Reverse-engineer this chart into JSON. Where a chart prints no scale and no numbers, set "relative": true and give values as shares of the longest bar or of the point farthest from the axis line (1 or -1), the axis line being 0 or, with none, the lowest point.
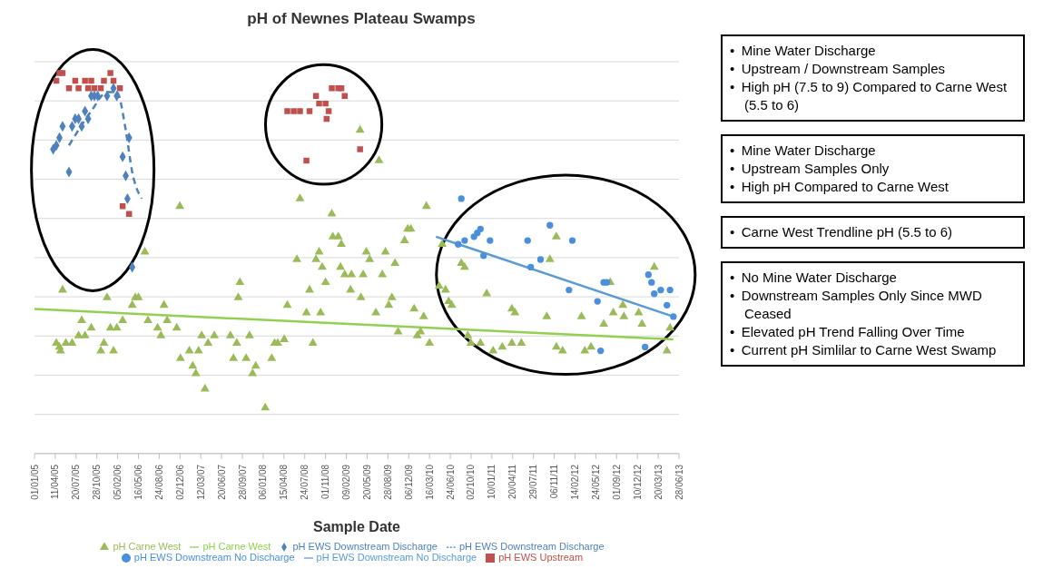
{
  "chart_data": {
    "type": "scatter",
    "title": "pH of Newnes Plateau Swamps",
    "xlabel": "Sample Date",
    "relative": true,
    "grid": "y",
    "legend": "bottom",
    "xlim": [
      "2005-01-01",
      "2013-06-28"
    ],
    "xticks": [
      {
        "value": "2005-01-01",
        "label": "01/01/05"
      },
      {
        "value": "2005-04-11",
        "label": "11/04/05"
      },
      {
        "value": "2005-07-20",
        "label": "20/07/05"
      },
      {
        "value": "2005-10-28",
        "label": "28/10/05"
      },
      {
        "value": "2006-02-05",
        "label": "05/02/06"
      },
      {
        "value": "2006-05-16",
        "label": "16/05/06"
      },
      {
        "value": "2006-08-24",
        "label": "24/08/06"
      },
      {
        "value": "2006-12-02",
        "label": "02/12/06"
      },
      {
        "value": "2007-03-12",
        "label": "12/03/07"
      },
      {
        "value": "2007-06-20",
        "label": "20/06/07"
      },
      {
        "value": "2007-09-28",
        "label": "28/09/07"
      },
      {
        "value": "2008-01-06",
        "label": "06/01/08"
      },
      {
        "value": "2008-04-15",
        "label": "15/04/08"
      },
      {
        "value": "2008-07-24",
        "label": "24/07/08"
      },
      {
        "value": "2008-11-01",
        "label": "01/11/08"
      },
      {
        "value": "2009-02-09",
        "label": "09/02/09"
      },
      {
        "value": "2009-05-20",
        "label": "20/05/09"
      },
      {
        "value": "2009-08-28",
        "label": "28/08/09"
      },
      {
        "value": "2009-12-06",
        "label": "06/12/09"
      },
      {
        "value": "2010-03-16",
        "label": "16/03/10"
      },
      {
        "value": "2010-06-24",
        "label": "24/06/10"
      },
      {
        "value": "2010-10-02",
        "label": "02/10/10"
      },
      {
        "value": "2011-01-10",
        "label": "10/01/11"
      },
      {
        "value": "2011-04-20",
        "label": "20/04/11"
      },
      {
        "value": "2011-07-29",
        "label": "29/07/11"
      },
      {
        "value": "2011-11-06",
        "label": "06/11/11"
      },
      {
        "value": "2012-02-14",
        "label": "14/02/12"
      },
      {
        "value": "2012-05-24",
        "label": "24/05/12"
      },
      {
        "value": "2012-09-01",
        "label": "01/09/12"
      },
      {
        "value": "2012-12-10",
        "label": "10/12/12"
      },
      {
        "value": "2013-03-20",
        "label": "20/03/13"
      },
      {
        "value": "2013-06-28",
        "label": "28/06/13"
      }
    ],
    "series": [
      {
        "name": "pH EWS Downstream Discharge",
        "marker": "diamond",
        "color": "#4f81bd",
        "x": [
          "2005-04-01",
          "2005-04-16",
          "2005-05-01",
          "2005-05-16",
          "2005-06-16",
          "2005-07-01",
          "2005-07-16",
          "2005-08-01",
          "2005-08-16",
          "2005-09-01",
          "2005-09-16",
          "2005-10-01",
          "2005-10-16",
          "2005-11-01",
          "2005-12-16",
          "2006-01-16",
          "2006-02-01",
          "2006-04-01",
          "2006-03-01",
          "2006-03-16",
          "2006-03-24",
          "2006-04-16"
        ],
        "values": [
          0.8,
          0.81,
          0.83,
          0.86,
          0.74,
          0.86,
          0.88,
          0.88,
          0.86,
          0.9,
          0.88,
          0.94,
          0.94,
          0.94,
          0.94,
          0.96,
          0.94,
          0.83,
          0.78,
          0.73,
          0.67,
          0.49
        ]
      },
      {
        "name": "pH EWS Upstream",
        "marker": "square",
        "color": "#c0504d",
        "x": [
          "2005-04-16",
          "2005-05-01",
          "2005-05-16",
          "2005-06-16",
          "2005-07-16",
          "2005-08-01",
          "2005-09-01",
          "2005-09-16",
          "2005-10-01",
          "2005-10-16",
          "2005-11-16",
          "2005-12-01",
          "2006-01-01",
          "2006-01-16",
          "2006-02-16",
          "2006-03-01",
          "2006-04-01",
          "2008-05-01",
          "2008-06-01",
          "2008-07-01",
          "2008-08-16",
          "2008-09-16",
          "2008-10-01",
          "2008-11-01",
          "2008-11-16",
          "2008-11-06",
          "2008-12-01",
          "2009-01-01",
          "2009-01-16",
          "2009-02-01",
          "2008-08-01",
          "2009-04-16"
        ],
        "values": [
          0.98,
          1.0,
          1.0,
          0.96,
          0.98,
          0.96,
          0.98,
          0.96,
          0.98,
          0.96,
          0.96,
          0.98,
          1.0,
          0.98,
          0.96,
          0.65,
          0.63,
          0.9,
          0.9,
          0.9,
          0.9,
          0.94,
          0.92,
          0.92,
          0.9,
          0.88,
          0.96,
          0.96,
          0.96,
          0.94,
          0.77,
          0.8
        ]
      },
      {
        "name": "pH Carne West",
        "marker": "triangle",
        "color": "#9bbb59",
        "x": [
          "2005-05-16",
          "2005-04-16",
          "2005-06-01",
          "2005-07-01",
          "2005-08-16",
          "2005-08-01",
          "2005-09-01",
          "2005-10-01",
          "2005-12-01",
          "2005-12-16",
          "2006-01-01",
          "2006-02-01",
          "2006-03-01",
          "2006-04-16",
          "2006-05-01",
          "2006-05-16",
          "2006-06-16",
          "2006-07-01",
          "2006-08-16",
          "2006-09-16",
          "2006-10-01",
          "2006-11-16",
          "2006-12-01",
          "2007-03-16",
          "2007-04-16",
          "2007-05-16",
          "2007-08-01",
          "2007-09-01",
          "2007-09-16",
          "2007-09-08",
          "2007-11-01",
          "2008-03-01",
          "2008-04-16",
          "2008-05-01",
          "2008-06-16",
          "2008-07-01",
          "2008-08-01",
          "2008-08-16",
          "2008-09-01",
          "2008-09-16",
          "2008-10-01",
          "2008-10-08",
          "2008-10-16",
          "2008-11-01",
          "2008-12-01",
          "2008-12-06",
          "2009-01-01",
          "2009-01-16",
          "2009-01-12",
          "2009-02-01",
          "2009-03-01",
          "2009-03-06",
          "2009-04-16",
          "2009-04-20",
          "2009-05-01",
          "2009-05-16",
          "2009-06-01",
          "2009-07-01",
          "2009-07-16",
          "2009-08-01",
          "2009-08-16",
          "2009-09-16",
          "2009-10-01",
          "2009-11-16",
          "2009-12-01",
          "2010-01-01",
          "2005-05-01",
          "2005-05-06",
          "2005-11-16",
          "2006-01-16",
          "2006-09-01",
          "2006-12-04",
          "2007-01-16",
          "2007-03-01",
          "2007-02-01",
          "2007-02-16",
          "2007-04-01",
          "2007-08-16",
          "2007-10-16",
          "2007-12-01",
          "2007-11-16",
          "2008-01-16",
          "2008-02-16",
          "2008-03-16",
          "2010-03-01",
          "2009-12-16",
          "2010-05-16",
          "2010-08-16",
          "2010-09-01",
          "2010-05-01",
          "2010-06-01",
          "2010-12-16",
          "2010-06-16",
          "2010-07-01",
          "2009-09-01",
          "2011-04-16",
          "2011-05-01",
          "2011-11-16",
          "2011-10-16",
          "2012-08-01",
          "2013-03-01",
          "2012-08-16",
          "2012-10-01",
          "2012-12-16",
          "2011-10-01",
          "2012-03-16",
          "2010-02-16",
          "2012-10-06",
          "2012-07-01",
          "2013-01-01",
          "2009-10-16",
          "2010-02-01",
          "2010-09-16",
          "2013-05-16",
          "2010-01-16",
          "2010-03-16",
          "2010-10-01",
          "2010-11-16",
          "2011-03-01",
          "2011-04-16",
          "2011-06-01",
          "2011-11-16",
          "2012-05-01",
          "2011-01-16",
          "2011-12-16",
          "2012-04-01",
          "2013-05-01"
        ],
        "values": [
          0.43,
          0.29,
          0.29,
          0.29,
          0.35,
          0.31,
          0.31,
          0.33,
          0.29,
          0.41,
          0.33,
          0.33,
          0.35,
          0.39,
          0.41,
          0.41,
          0.53,
          0.35,
          0.33,
          0.39,
          0.35,
          0.33,
          0.65,
          0.31,
          0.29,
          0.31,
          0.31,
          0.29,
          0.45,
          0.41,
          0.31,
          0.29,
          0.3,
          0.39,
          0.51,
          0.67,
          0.37,
          0.43,
          0.29,
          0.51,
          0.53,
          0.37,
          0.49,
          0.45,
          0.63,
          0.57,
          0.57,
          0.55,
          0.49,
          0.47,
          0.43,
          0.47,
          0.85,
          0.41,
          0.47,
          0.53,
          0.51,
          0.37,
          0.77,
          0.47,
          0.53,
          0.41,
          0.5,
          0.56,
          0.59,
          0.38,
          0.28,
          0.27,
          0.27,
          0.27,
          0.31,
          0.25,
          0.27,
          0.27,
          0.23,
          0.21,
          0.17,
          0.25,
          0.25,
          0.23,
          0.21,
          0.12,
          0.25,
          0.29,
          0.65,
          0.59,
          0.55,
          0.5,
          0.49,
          0.44,
          0.43,
          0.42,
          0.4,
          0.39,
          0.39,
          0.38,
          0.37,
          0.57,
          0.51,
          0.45,
          0.49,
          0.37,
          0.39,
          0.37,
          0.36,
          0.36,
          0.36,
          0.36,
          0.34,
          0.34,
          0.32,
          0.32,
          0.31,
          0.33,
          0.31,
          0.29,
          0.29,
          0.29,
          0.28,
          0.29,
          0.29,
          0.28,
          0.28,
          0.27,
          0.27,
          0.27,
          0.27
        ]
      },
      {
        "name": "pH EWS Downstream No Discharge",
        "marker": "circle",
        "color": "#4a8fdc",
        "x": [
          "2010-08-16",
          "2010-08-01",
          "2010-09-01",
          "2010-10-16",
          "2010-11-01",
          "2010-11-16",
          "2010-12-01",
          "2011-01-01",
          "2011-07-01",
          "2011-07-16",
          "2011-09-01",
          "2011-10-16",
          "2012-02-01",
          "2012-01-16",
          "2012-06-01",
          "2012-07-01",
          "2012-07-16",
          "2012-06-16",
          "2013-01-16",
          "2013-02-01",
          "2013-02-16",
          "2013-03-01",
          "2013-04-01",
          "2013-05-16",
          "2013-05-01",
          "2013-06-01"
        ],
        "values": [
          0.67,
          0.55,
          0.56,
          0.57,
          0.58,
          0.59,
          0.52,
          0.56,
          0.56,
          0.49,
          0.51,
          0.6,
          0.56,
          0.43,
          0.4,
          0.45,
          0.45,
          0.27,
          0.28,
          0.47,
          0.45,
          0.42,
          0.43,
          0.43,
          0.39,
          0.36
        ]
      },
      {
        "name": "pH EWS Downstream Discharge",
        "type": "line",
        "marker": "none",
        "line_style": "dashed",
        "color": "#4f81bd",
        "x": [
          "2005-06-16",
          "2005-10-01",
          "2005-12-16",
          "2006-02-01",
          "2006-03-16",
          "2006-04-16",
          "2006-06-01"
        ],
        "values": [
          0.81,
          0.9,
          0.95,
          0.95,
          0.85,
          0.74,
          0.67
        ]
      },
      {
        "name": "pH Carne West",
        "type": "line",
        "marker": "none",
        "color": "#92d050",
        "x": [
          "2005-01-01",
          "2013-06-01"
        ],
        "values": [
          0.38,
          0.3
        ]
      },
      {
        "name": "pH EWS Downstream No Discharge",
        "type": "line",
        "marker": "none",
        "color": "#5b9bd5",
        "x": [
          "2010-04-16",
          "2013-06-01"
        ],
        "values": [
          0.57,
          0.36
        ]
      }
    ],
    "annotations": [
      "• Mine Water Discharge\n• Upstream / Downstream Samples\n• High pH (7.5 to 9) Compared to Carne West (5.5 to 6)",
      "• Mine Water Discharge\n• Upstream Samples Only\n• High pH Compared to Carne West",
      "• Carne West Trendline pH (5.5 to 6)",
      "• No Mine Water Discharge\n• Downstream Samples Only Since MWD Ceased\n• Elevated pH Trend Falling Over Time\n• Current pH Simlilar to Carne West Swamp"
    ]
  }
}
